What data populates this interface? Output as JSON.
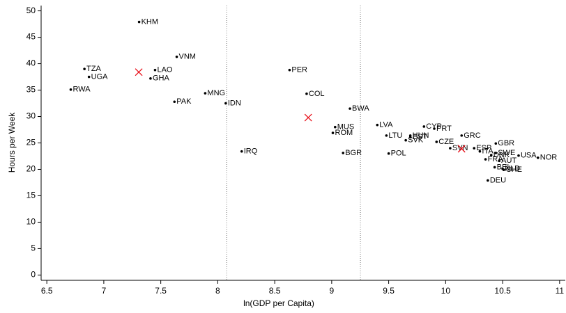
{
  "chart_data": {
    "type": "scatter",
    "x_label": "ln(GDP per Capita)",
    "y_label": "Hours per Week",
    "xlim": [
      6.45,
      11.05
    ],
    "ylim": [
      -1,
      51
    ],
    "xticks": [
      6.5,
      7,
      7.5,
      8,
      8.5,
      9,
      9.5,
      10,
      10.5,
      11
    ],
    "yticks": [
      0,
      5,
      10,
      15,
      20,
      25,
      30,
      35,
      40,
      45,
      50
    ],
    "vlines": [
      8.078,
      9.252
    ],
    "series": [
      {
        "color": "#000000",
        "labels": [
          "KHM",
          "VNM",
          "TZA",
          "UGA",
          "LAO",
          "GHA",
          "RWA",
          "PAK",
          "MNG",
          "IDN",
          "IRQ",
          "PER",
          "COL",
          "BWA",
          "MUS",
          "ROM",
          "BGR",
          "LVA",
          "LTU",
          "POL",
          "CYP",
          "PRT",
          "HUN",
          "EST",
          "SVK",
          "CZE",
          "GRC",
          "SVN",
          "ESP",
          "ITA",
          "SWE",
          "DNK",
          "FRA",
          "AUT",
          "BEL",
          "NLD",
          "CHE",
          "GBR",
          "USA",
          "NOR",
          "DEU"
        ],
        "x": [
          7.31,
          7.64,
          6.83,
          6.87,
          7.45,
          7.41,
          6.71,
          7.62,
          7.89,
          8.07,
          8.21,
          8.63,
          8.78,
          9.16,
          9.03,
          9.01,
          9.1,
          9.4,
          9.48,
          9.5,
          9.81,
          9.9,
          9.69,
          9.69,
          9.65,
          9.92,
          10.14,
          10.04,
          10.25,
          10.3,
          10.44,
          10.4,
          10.35,
          10.47,
          10.43,
          10.5,
          10.51,
          10.44,
          10.64,
          10.81,
          10.37
        ],
        "values": [
          47.9,
          41.3,
          39.0,
          37.5,
          38.8,
          37.2,
          35.1,
          32.8,
          34.4,
          32.5,
          23.4,
          38.8,
          34.3,
          31.5,
          28.0,
          26.9,
          23.1,
          28.4,
          26.4,
          23.0,
          28.1,
          27.7,
          26.4,
          26.1,
          25.5,
          25.2,
          26.4,
          24.0,
          24.0,
          23.4,
          23.1,
          22.7,
          21.9,
          21.6,
          20.4,
          20.1,
          19.9,
          24.9,
          22.6,
          22.2,
          17.9
        ]
      },
      {
        "color": "#e8101a",
        "marker": "x",
        "x": [
          7.307,
          8.794,
          10.14
        ],
        "values": [
          38.4,
          29.8,
          23.9
        ]
      }
    ]
  }
}
